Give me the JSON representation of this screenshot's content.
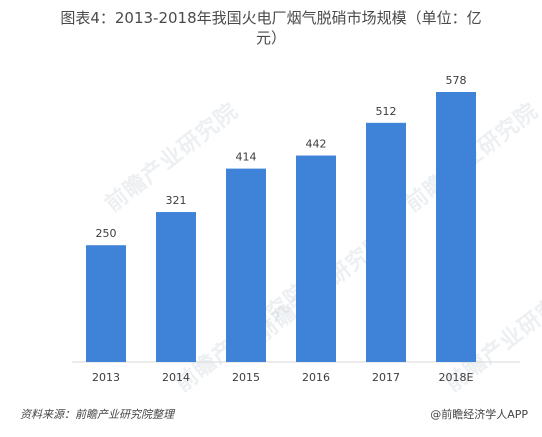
{
  "title_line1": "图表4：2013-2018年我国火电厂烟气脱硝市场规模（单位：亿",
  "title_line2": "元）",
  "watermark_text": "前瞻产业研究院",
  "source": "资料来源：前瞻产业研究院整理",
  "credit": "@前瞻经济学人APP",
  "colors": {
    "bar": "#3f83d9"
  },
  "chart_data": {
    "type": "bar",
    "categories": [
      "2013",
      "2014",
      "2015",
      "2016",
      "2017",
      "2018E"
    ],
    "values": [
      250,
      321,
      414,
      442,
      512,
      578
    ],
    "title": "图表4：2013-2018年我国火电厂烟气脱硝市场规模（单位：亿元）",
    "xlabel": "",
    "ylabel": "",
    "ylim": [
      0,
      650
    ],
    "grid": false,
    "data_labels": true
  }
}
